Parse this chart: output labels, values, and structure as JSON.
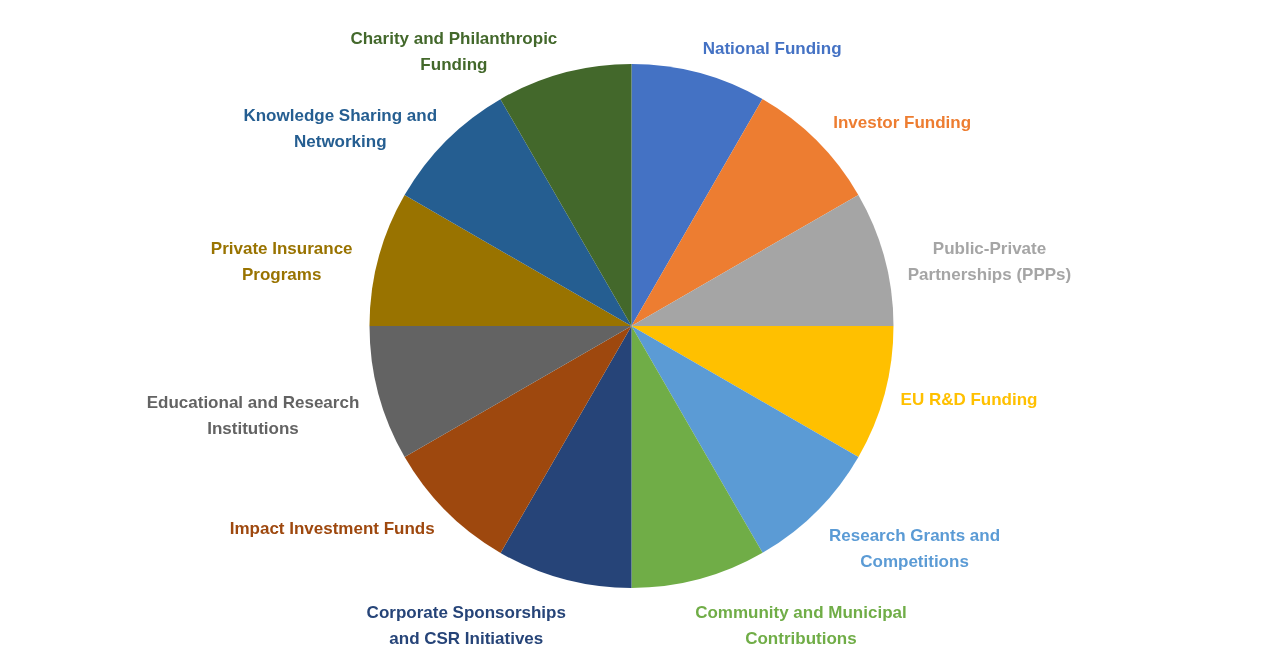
{
  "chart_data": {
    "type": "pie",
    "categories": [
      "National Funding",
      "Investor Funding",
      "Public-Private\nPartnerships (PPPs)",
      "EU R&D Funding",
      "Research Grants and\nCompetitions",
      "Community and Municipal\nContributions",
      "Corporate Sponsorships\nand CSR Initiatives",
      "Impact Investment Funds",
      "Educational and Research\nInstitutions",
      "Private Insurance\nPrograms",
      "Knowledge Sharing and\nNetworking",
      "Charity and Philanthropic\nFunding"
    ],
    "values": [
      8.33,
      8.33,
      8.34,
      8.33,
      8.33,
      8.34,
      8.33,
      8.33,
      8.34,
      8.33,
      8.33,
      8.34
    ],
    "colors": [
      "#4472c4",
      "#ed7d31",
      "#a5a5a5",
      "#ffc000",
      "#5b9bd5",
      "#70ad47",
      "#264478",
      "#9e480e",
      "#636363",
      "#997300",
      "#255e91",
      "#43682b"
    ]
  }
}
